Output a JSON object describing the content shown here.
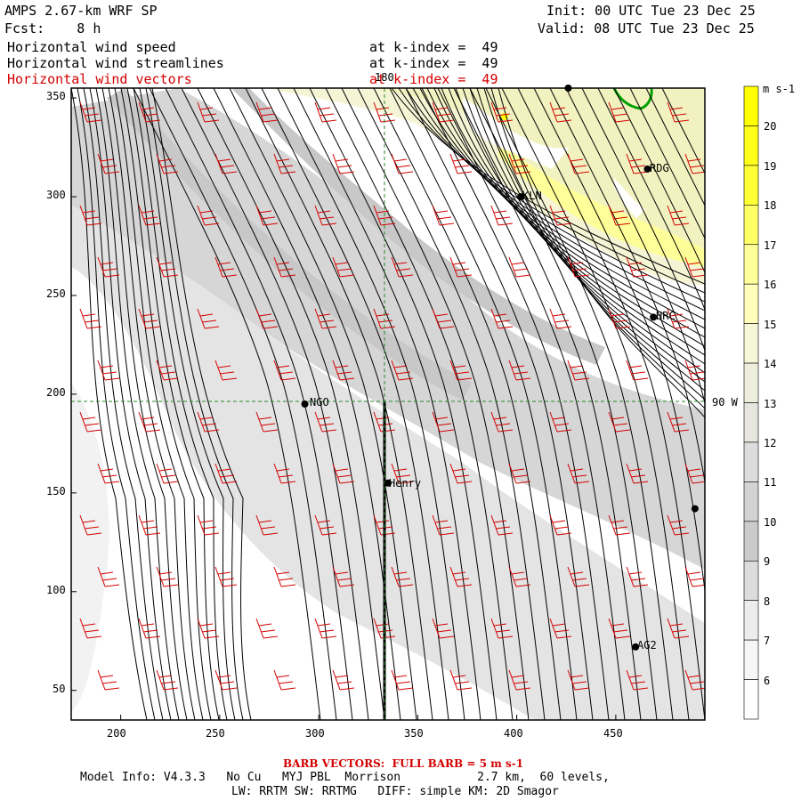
{
  "header": {
    "title": "AMPS 2.67-km WRF SP",
    "fcst": "Fcst:    8 h",
    "init": "Init: 00 UTC Tue 23 Dec 25",
    "valid": "Valid: 08 UTC Tue 23 Dec 25",
    "fields": [
      {
        "name": "Horizontal wind speed",
        "level": "at k-index =  49"
      },
      {
        "name": "Horizontal wind streamlines",
        "level": "at k-index =  49"
      },
      {
        "name": "Horizontal wind vectors",
        "level": "at k-index =  49"
      }
    ]
  },
  "map": {
    "x_ticks": [
      "200",
      "250",
      "300",
      "350",
      "400",
      "450"
    ],
    "y_ticks": [
      "350",
      "300",
      "250",
      "200",
      "150",
      "100",
      "50"
    ],
    "lon_label": "180",
    "lat_label": "90 W",
    "stations": [
      {
        "name": "KLN",
        "x": 402,
        "y": 300
      },
      {
        "name": "RDG",
        "x": 466,
        "y": 314
      },
      {
        "name": "HRC",
        "x": 469,
        "y": 239
      },
      {
        "name": "NGO",
        "x": 293,
        "y": 195
      },
      {
        "name": "Henry",
        "x": 335,
        "y": 155
      },
      {
        "name": "AG2",
        "x": 460,
        "y": 72
      },
      {
        "name": "",
        "x": 426,
        "y": 355
      },
      {
        "name": "",
        "x": 490,
        "y": 142
      }
    ]
  },
  "colorbar": {
    "unit": "m s-1",
    "labels": [
      "20",
      "19",
      "18",
      "17",
      "16",
      "15",
      "14",
      "13",
      "12",
      "11",
      "10",
      "9",
      "8",
      "7",
      "6"
    ],
    "colors": [
      "#ffff00",
      "#ffff19",
      "#ffff33",
      "#ffff66",
      "#ffff99",
      "#ffffbb",
      "#f6f6d8",
      "#eeeedd",
      "#e6e6de",
      "#dddddd",
      "#d3d3d3",
      "#cbcbcb",
      "#dcdcdc",
      "#ececec",
      "#f6f6f6",
      "#ffffff"
    ]
  },
  "footer": {
    "barb_note": "BARB VECTORS:  FULL BARB = 5 m s-1",
    "model_info": "Model Info: V4.3.3   No Cu   MYJ PBL  Morrison           2.7 km,  60 levels,",
    "physics": "LW: RRTM SW: RRTMG   DIFF: simple KM: 2D Smagor"
  }
}
